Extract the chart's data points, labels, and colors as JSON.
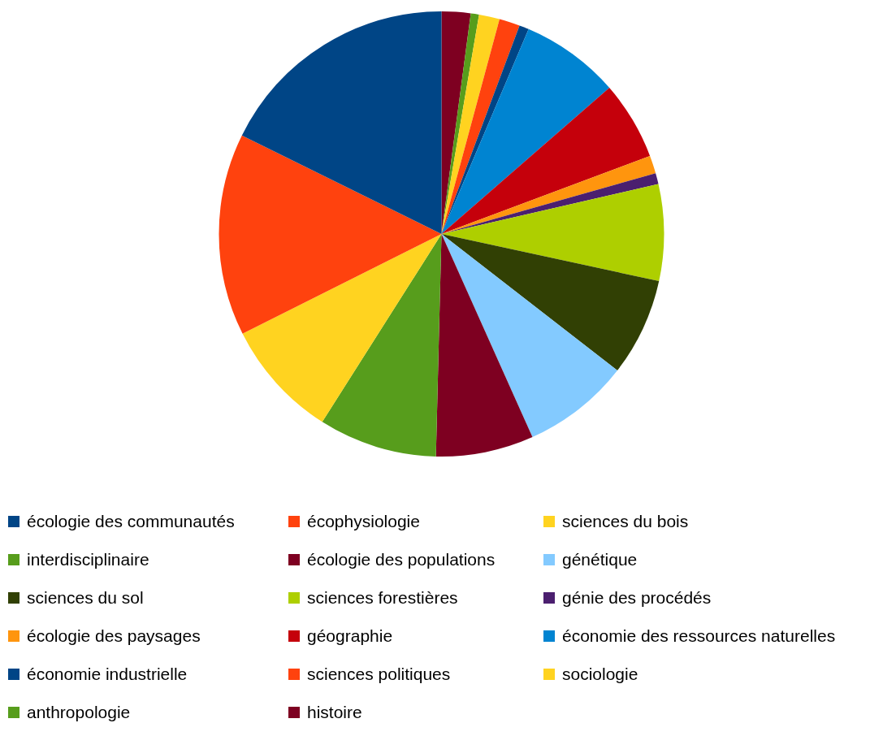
{
  "chart_data": {
    "type": "pie",
    "legend": "bottom",
    "categories": [
      "écologie des communautés",
      "écophysiologie",
      "sciences du bois",
      "interdisciplinaire",
      "écologie des populations",
      "génétique",
      "sciences du sol",
      "sciences forestières",
      "génie des procédés",
      "écologie des paysages",
      "géographie",
      "économie des ressources naturelles",
      "économie industrielle",
      "sciences politiques",
      "sociologie",
      "anthropologie",
      "histoire"
    ],
    "values": [
      17.7,
      14.7,
      8.6,
      8.6,
      7.1,
      7.8,
      7.1,
      7.0,
      0.8,
      1.3,
      5.7,
      7.2,
      0.7,
      1.5,
      1.5,
      0.6,
      2.1
    ],
    "colors": [
      "#004586",
      "#ff420e",
      "#ffd320",
      "#579d1c",
      "#7e0021",
      "#83caff",
      "#314004",
      "#aecf00",
      "#4b1f6f",
      "#ff950e",
      "#c5000b",
      "#0084d1",
      "#004586",
      "#ff420e",
      "#ffd320",
      "#579d1c",
      "#7e0021"
    ]
  }
}
